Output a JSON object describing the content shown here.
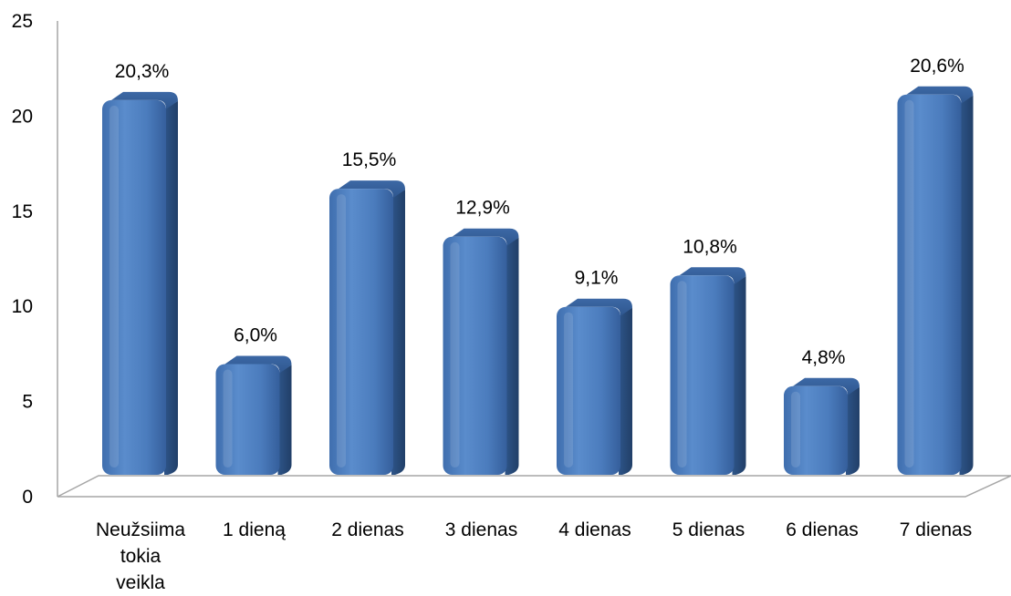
{
  "chart_data": {
    "type": "bar",
    "title": "",
    "xlabel": "",
    "ylabel": "",
    "ylim": [
      0,
      25
    ],
    "yticks": [
      "0",
      "5",
      "10",
      "15",
      "20",
      "25"
    ],
    "grid": false,
    "legend": "none",
    "style": "3d-cylinder-bars",
    "bar_color": "#4f7fbe",
    "categories": [
      [
        "Neužsiima",
        "tokia",
        "veikla"
      ],
      [
        "1 dieną"
      ],
      [
        "2 dienas"
      ],
      [
        "3 dienas"
      ],
      [
        "4 dienas"
      ],
      [
        "5 dienas"
      ],
      [
        "6 dienas"
      ],
      [
        "7 dienas"
      ]
    ],
    "values": [
      20.3,
      6.0,
      15.5,
      12.9,
      9.1,
      10.8,
      4.8,
      20.6
    ],
    "data_labels": [
      "20,3%",
      "6,0%",
      "15,5%",
      "12,9%",
      "9,1%",
      "10,8%",
      "4,8%",
      "20,6%"
    ]
  }
}
